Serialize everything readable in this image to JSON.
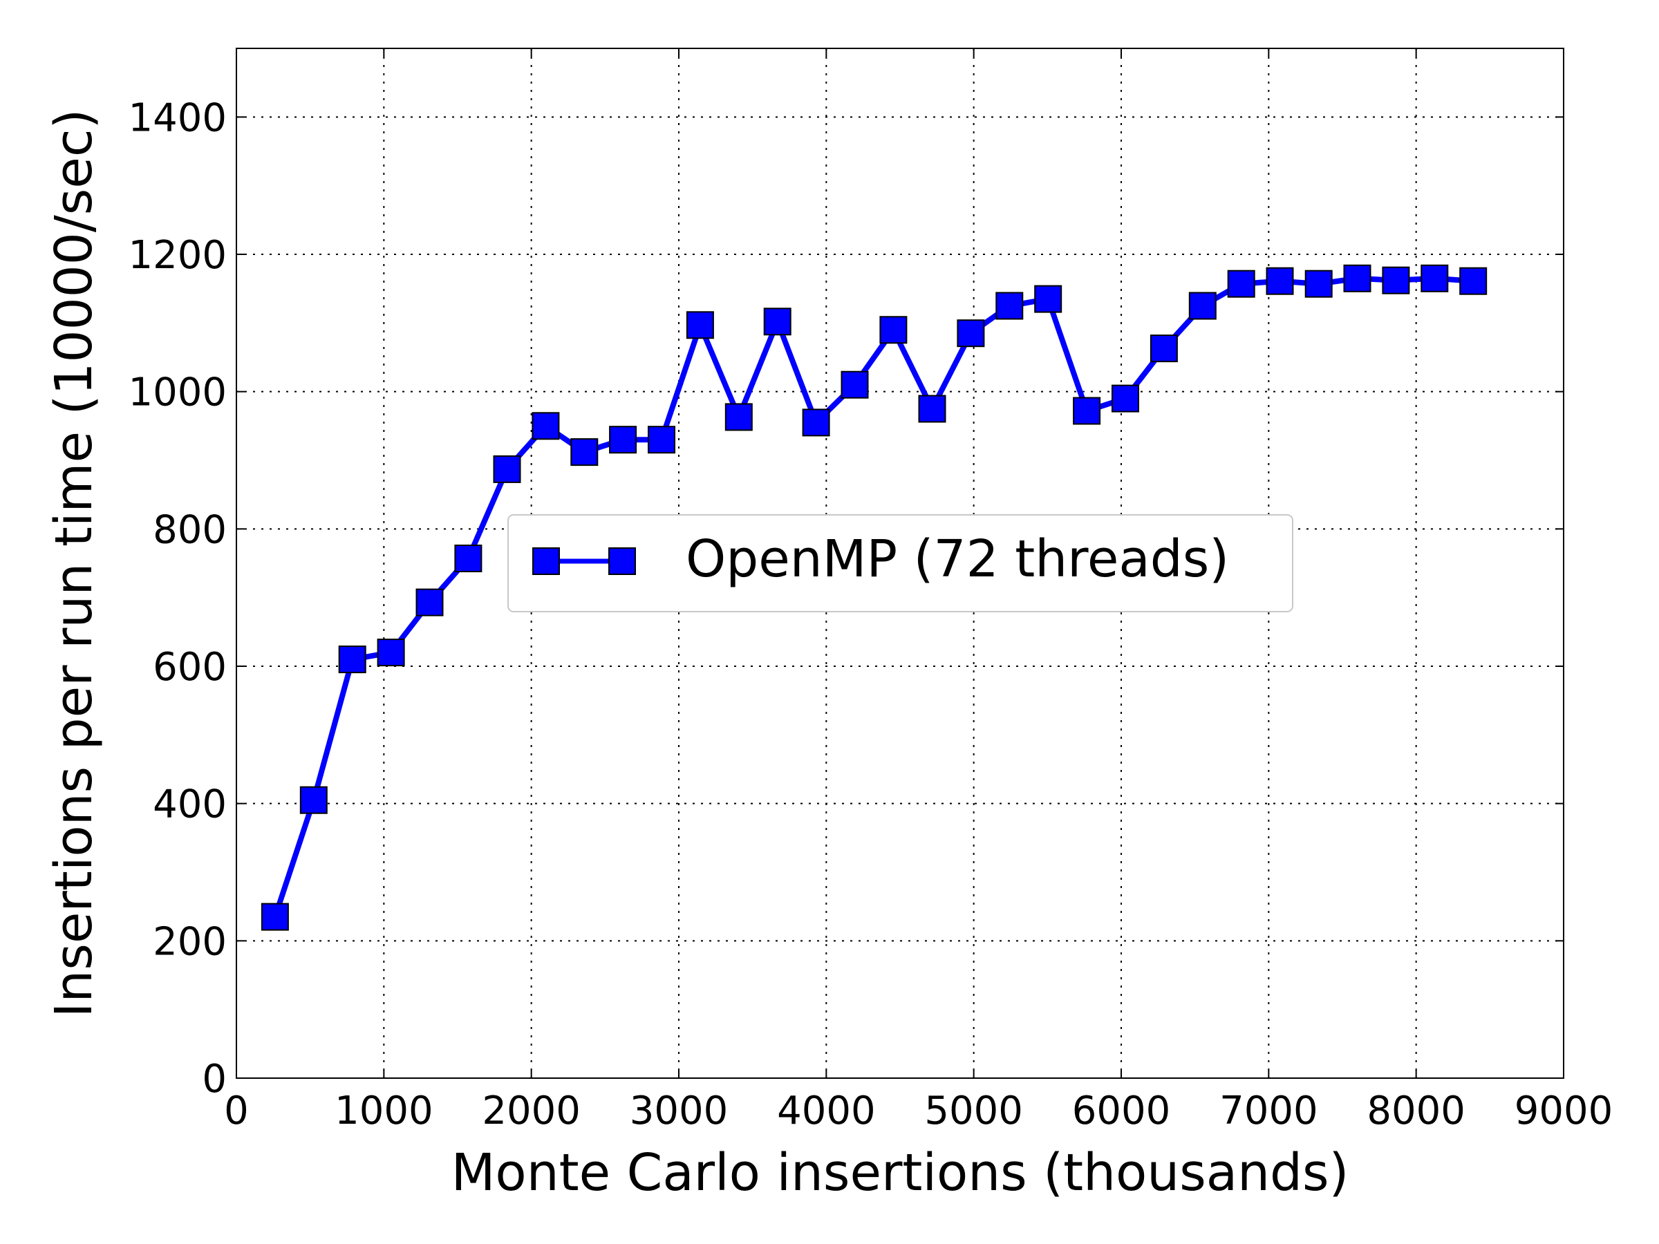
{
  "chart_data": {
    "type": "line",
    "title": "",
    "xlabel": "Monte Carlo insertions (thousands)",
    "ylabel": "Insertions per run time (10000/sec)",
    "xlim": [
      0,
      9000
    ],
    "ylim": [
      0,
      1500
    ],
    "x_ticks": [
      "0",
      "1000",
      "2000",
      "3000",
      "4000",
      "5000",
      "6000",
      "7000",
      "8000",
      "9000"
    ],
    "y_ticks": [
      "0",
      "200",
      "400",
      "600",
      "800",
      "1000",
      "1200",
      "1400"
    ],
    "grid": true,
    "legend_position": "center",
    "series": [
      {
        "name": "OpenMP (72 threads)",
        "color": "#0000ff",
        "marker": "square",
        "x": [
          262,
          524,
          786,
          1048,
          1310,
          1572,
          1835,
          2097,
          2359,
          2621,
          2883,
          3145,
          3407,
          3669,
          3931,
          4193,
          4455,
          4718,
          4980,
          5242,
          5504,
          5766,
          6028,
          6290,
          6552,
          6814,
          7076,
          7339,
          7601,
          7863,
          8125,
          8387
        ],
        "y": [
          235,
          405,
          610,
          620,
          693,
          757,
          887,
          950,
          912,
          930,
          930,
          1097,
          963,
          1102,
          955,
          1010,
          1090,
          975,
          1085,
          1125,
          1135,
          972,
          990,
          1063,
          1125,
          1157,
          1161,
          1157,
          1165,
          1162,
          1165,
          1161
        ]
      }
    ]
  }
}
